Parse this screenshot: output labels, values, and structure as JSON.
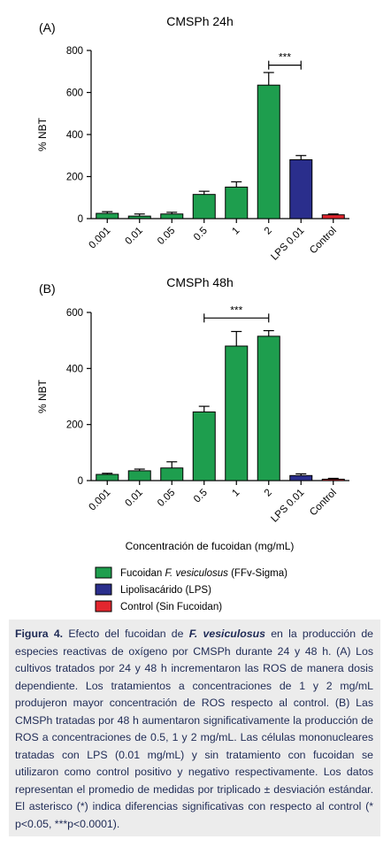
{
  "chart_data": [
    {
      "type": "bar",
      "panel": "(A)",
      "title": "CMSPh 24h",
      "ylabel": "% NBT",
      "xlabel": "",
      "ylim": [
        0,
        800
      ],
      "yticks": [
        0,
        200,
        400,
        600,
        800
      ],
      "categories": [
        "0.001",
        "0.01",
        "0.05",
        "0.5",
        "1",
        "2",
        "LPS 0.01",
        "Control"
      ],
      "values": [
        25,
        12,
        22,
        115,
        150,
        635,
        280,
        18
      ],
      "errors": [
        8,
        10,
        8,
        15,
        25,
        60,
        20,
        4
      ],
      "bar_colors": [
        "#1e9e4e",
        "#1e9e4e",
        "#1e9e4e",
        "#1e9e4e",
        "#1e9e4e",
        "#1e9e4e",
        "#2a2e8c",
        "#e3262e"
      ],
      "significance": {
        "label": "***",
        "from": "2",
        "to": "LPS 0.01",
        "y": 730
      }
    },
    {
      "type": "bar",
      "panel": "(B)",
      "title": "CMSPh 48h",
      "ylabel": "% NBT",
      "xlabel": "Concentración de fucoidan (mg/mL)",
      "ylim": [
        0,
        600
      ],
      "yticks": [
        0,
        200,
        400,
        600
      ],
      "categories": [
        "0.001",
        "0.01",
        "0.05",
        "0.5",
        "1",
        "2",
        "LPS 0.01",
        "Control"
      ],
      "values": [
        22,
        35,
        45,
        245,
        480,
        515,
        18,
        5
      ],
      "errors": [
        4,
        6,
        22,
        20,
        52,
        20,
        6,
        3
      ],
      "bar_colors": [
        "#1e9e4e",
        "#1e9e4e",
        "#1e9e4e",
        "#1e9e4e",
        "#1e9e4e",
        "#1e9e4e",
        "#2a2e8c",
        "#e3262e"
      ],
      "significance": {
        "label": "***",
        "from": "0.5",
        "to": "2",
        "y": 580
      }
    }
  ],
  "legend": [
    {
      "prefix": "Fucoidan ",
      "italic": "F. vesiculosus",
      "suffix": " (FFv-Sigma)",
      "color": "#1e9e4e"
    },
    {
      "prefix": "Lipolisacárido (LPS)",
      "italic": "",
      "suffix": "",
      "color": "#2a2e8c"
    },
    {
      "prefix": "Control (Sin Fucoidan)",
      "italic": "",
      "suffix": "",
      "color": "#e3262e"
    }
  ],
  "caption": {
    "label": "Figura 4.",
    "text_before": " Efecto del fucoidan de ",
    "species": "F. vesiculosus",
    "text_after": " en la producción de especies reactivas de oxígeno por CMSPh durante 24 y 48 h. (A) Los cultivos tratados por 24 y 48 h incrementaron las ROS de manera dosis dependiente. Los tratamientos a concentraciones de 1 y 2 mg/mL produjeron mayor concentración de ROS respecto al control. (B) Las CMSPh tratadas por 48 h aumentaron significativamente la producción de ROS a concentraciones de 0.5, 1 y 2 mg/mL. Las células mononucleares tratadas con LPS (0.01 mg/mL) y sin tratamiento con fucoidan se utilizaron como control positivo y negativo respectivamente. Los datos representan el promedio de medidas por triplicado ± desviación estándar. El asterisco (*) indica diferencias significativas con respecto al control (* p<0.05, ***p<0.0001)."
  }
}
